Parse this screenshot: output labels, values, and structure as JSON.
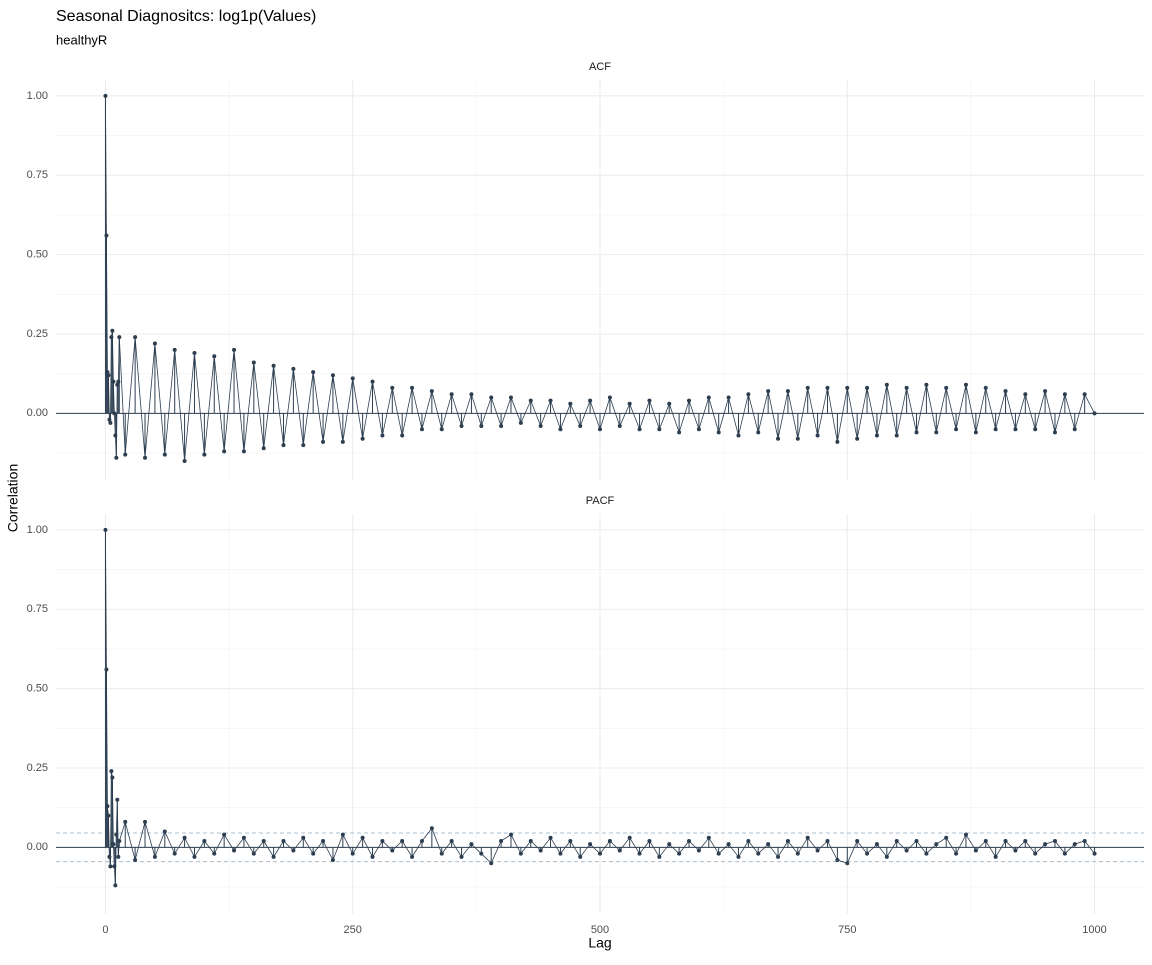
{
  "title": "Seasonal Diagnositcs: log1p(Values)",
  "subtitle": "healthyR",
  "y_label": "Correlation",
  "x_label": "Lag",
  "chart_data": [
    {
      "type": "lollipop",
      "panel_title": "ACF",
      "color": "#2c3e50",
      "grid": true,
      "xlim": [
        -50,
        1050
      ],
      "xticks": [
        0,
        250,
        500,
        750,
        1000
      ],
      "ylim": [
        -0.21,
        1.05
      ],
      "yticks": [
        {
          "value": 1,
          "label": "1.00"
        },
        {
          "value": 0.75,
          "label": "0.75"
        },
        {
          "value": 0.5,
          "label": "0.50"
        },
        {
          "value": 0.25,
          "label": "0.25"
        },
        {
          "value": 0,
          "label": "0.00"
        }
      ],
      "x": [
        0,
        1,
        2,
        3,
        4,
        5,
        6,
        7,
        8,
        9,
        10,
        11,
        12,
        13,
        14,
        20,
        30,
        40,
        50,
        60,
        70,
        80,
        90,
        100,
        110,
        120,
        130,
        140,
        150,
        160,
        170,
        180,
        190,
        200,
        210,
        220,
        230,
        240,
        250,
        260,
        270,
        280,
        290,
        300,
        310,
        320,
        330,
        340,
        350,
        360,
        370,
        380,
        390,
        400,
        410,
        420,
        430,
        440,
        450,
        460,
        470,
        480,
        490,
        500,
        510,
        520,
        530,
        540,
        550,
        560,
        570,
        580,
        590,
        600,
        610,
        620,
        630,
        640,
        650,
        660,
        670,
        680,
        690,
        700,
        710,
        720,
        730,
        740,
        750,
        760,
        770,
        780,
        790,
        800,
        810,
        820,
        830,
        840,
        850,
        860,
        870,
        880,
        890,
        900,
        910,
        920,
        930,
        940,
        950,
        960,
        970,
        980,
        990,
        1000
      ],
      "values": [
        1.0,
        0.56,
        0.13,
        0.12,
        -0.02,
        -0.03,
        0.24,
        0.26,
        0.1,
        0.0,
        -0.07,
        -0.14,
        0.09,
        0.1,
        0.24,
        -0.13,
        0.24,
        -0.14,
        0.22,
        -0.13,
        0.2,
        -0.15,
        0.19,
        -0.13,
        0.18,
        -0.12,
        0.2,
        -0.12,
        0.16,
        -0.11,
        0.15,
        -0.1,
        0.14,
        -0.1,
        0.13,
        -0.09,
        0.12,
        -0.09,
        0.11,
        -0.08,
        0.1,
        -0.07,
        0.08,
        -0.07,
        0.08,
        -0.05,
        0.07,
        -0.05,
        0.06,
        -0.04,
        0.06,
        -0.04,
        0.05,
        -0.04,
        0.05,
        -0.03,
        0.04,
        -0.04,
        0.04,
        -0.05,
        0.03,
        -0.04,
        0.04,
        -0.05,
        0.05,
        -0.04,
        0.03,
        -0.05,
        0.04,
        -0.05,
        0.03,
        -0.06,
        0.04,
        -0.05,
        0.05,
        -0.06,
        0.05,
        -0.07,
        0.06,
        -0.06,
        0.07,
        -0.08,
        0.07,
        -0.08,
        0.08,
        -0.07,
        0.08,
        -0.09,
        0.08,
        -0.08,
        0.08,
        -0.07,
        0.09,
        -0.07,
        0.08,
        -0.06,
        0.09,
        -0.06,
        0.08,
        -0.05,
        0.09,
        -0.06,
        0.08,
        -0.05,
        0.07,
        -0.05,
        0.06,
        -0.05,
        0.07,
        -0.06,
        0.06,
        -0.05,
        0.06,
        0.0
      ]
    },
    {
      "type": "lollipop",
      "panel_title": "PACF",
      "color": "#2c3e50",
      "grid": true,
      "bound_color": "#a9bfd0",
      "significance_bounds": [
        -0.045,
        0.045
      ],
      "xlim": [
        -50,
        1050
      ],
      "xticks": [
        0,
        250,
        500,
        750,
        1000
      ],
      "ylim": [
        -0.21,
        1.05
      ],
      "yticks": [
        {
          "value": 1,
          "label": "1.00"
        },
        {
          "value": 0.75,
          "label": "0.75"
        },
        {
          "value": 0.5,
          "label": "0.50"
        },
        {
          "value": 0.25,
          "label": "0.25"
        },
        {
          "value": 0,
          "label": "0.00"
        }
      ],
      "x": [
        0,
        1,
        2,
        3,
        4,
        5,
        6,
        7,
        8,
        9,
        10,
        11,
        12,
        13,
        14,
        20,
        30,
        40,
        50,
        60,
        70,
        80,
        90,
        100,
        110,
        120,
        130,
        140,
        150,
        160,
        170,
        180,
        190,
        200,
        210,
        220,
        230,
        240,
        250,
        260,
        270,
        280,
        290,
        300,
        310,
        320,
        330,
        340,
        350,
        360,
        370,
        380,
        390,
        400,
        410,
        420,
        430,
        440,
        450,
        460,
        470,
        480,
        490,
        500,
        510,
        520,
        530,
        540,
        550,
        560,
        570,
        580,
        590,
        600,
        610,
        620,
        630,
        640,
        650,
        660,
        670,
        680,
        690,
        700,
        710,
        720,
        730,
        740,
        750,
        760,
        770,
        780,
        790,
        800,
        810,
        820,
        830,
        840,
        850,
        860,
        870,
        880,
        890,
        900,
        910,
        920,
        930,
        940,
        950,
        960,
        970,
        980,
        990,
        1000
      ],
      "values": [
        1.0,
        0.56,
        0.13,
        0.1,
        -0.03,
        -0.06,
        0.24,
        0.22,
        0.01,
        -0.06,
        -0.12,
        0.04,
        0.15,
        -0.03,
        0.02,
        0.08,
        -0.04,
        0.08,
        -0.03,
        0.05,
        -0.02,
        0.03,
        -0.03,
        0.02,
        -0.02,
        0.04,
        -0.01,
        0.03,
        -0.02,
        0.02,
        -0.03,
        0.02,
        -0.01,
        0.03,
        -0.02,
        0.02,
        -0.04,
        0.04,
        -0.02,
        0.03,
        -0.03,
        0.02,
        -0.01,
        0.02,
        -0.03,
        0.02,
        0.06,
        -0.02,
        0.02,
        -0.03,
        0.01,
        -0.02,
        -0.05,
        0.02,
        0.04,
        -0.02,
        0.02,
        -0.01,
        0.03,
        -0.02,
        0.02,
        -0.03,
        0.01,
        -0.02,
        0.02,
        -0.01,
        0.03,
        -0.02,
        0.02,
        -0.03,
        0.01,
        -0.02,
        0.02,
        -0.01,
        0.03,
        -0.02,
        0.01,
        -0.03,
        0.02,
        -0.02,
        0.01,
        -0.03,
        0.02,
        -0.02,
        0.03,
        -0.01,
        0.02,
        -0.04,
        -0.05,
        0.02,
        -0.02,
        0.01,
        -0.03,
        0.02,
        -0.01,
        0.02,
        -0.02,
        0.01,
        0.03,
        -0.02,
        0.04,
        -0.01,
        0.02,
        -0.03,
        0.02,
        -0.01,
        0.02,
        -0.02,
        0.01,
        0.02,
        -0.02,
        0.01,
        0.02,
        -0.02
      ]
    }
  ]
}
